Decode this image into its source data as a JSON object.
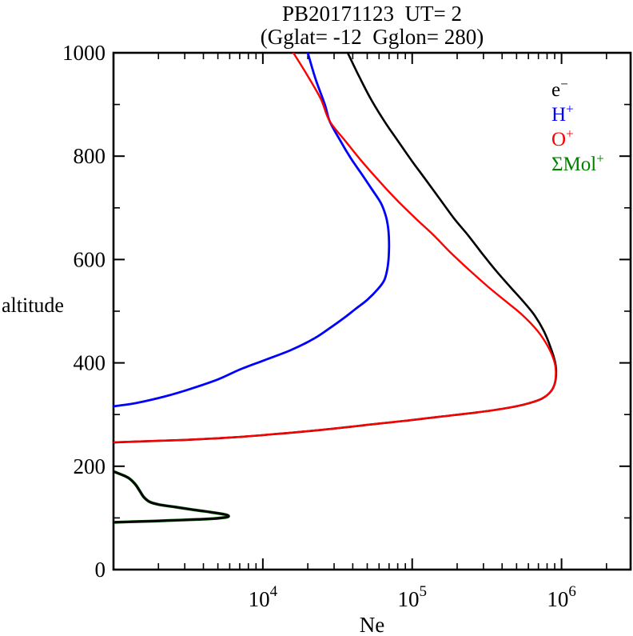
{
  "chart_data": {
    "type": "line",
    "title": "PB20171123  UT= 2",
    "subtitle": "(Gglat= -12  Gglon= 280)",
    "xlabel": "Ne",
    "ylabel": "altitude",
    "x_scale": "log",
    "xlim": [
      1000,
      2900000
    ],
    "ylim": [
      0,
      1000
    ],
    "x_major_tick_exponents": [
      4,
      5,
      6
    ],
    "x_tick_mantissa": "10",
    "y_major_ticks": [
      0,
      200,
      400,
      600,
      800,
      1000
    ],
    "y_minor_step": 100,
    "grid": "off",
    "legend_position": "upper-right-inside",
    "legend": [
      {
        "base": "e",
        "sup": "−",
        "color": "#000000"
      },
      {
        "base": "H",
        "sup": "+",
        "color": "#0000ff"
      },
      {
        "base": "O",
        "sup": "+",
        "color": "#ff0000"
      },
      {
        "base": "ΣMol",
        "sup": "+",
        "color": "#008000"
      }
    ],
    "series": [
      {
        "name": "sum-molecular-ions",
        "color": "#006400",
        "width": 3.6,
        "segments": [
          [
            [
              1000,
              190
            ],
            [
              1250,
              178
            ],
            [
              1400,
              165
            ],
            [
              1500,
              152
            ],
            [
              1600,
              140
            ],
            [
              1750,
              131
            ],
            [
              2000,
              126
            ],
            [
              2600,
              121
            ],
            [
              3400,
              116
            ],
            [
              4500,
              111
            ],
            [
              5500,
              107
            ],
            [
              5900,
              104
            ],
            [
              5600,
              101
            ],
            [
              4300,
              98
            ],
            [
              2900,
              96
            ],
            [
              1900,
              94
            ],
            [
              1300,
              92.5
            ],
            [
              1000,
              91.5
            ]
          ]
        ]
      },
      {
        "name": "hydrogen-ions",
        "color": "#0000ff",
        "width": 2.8,
        "segments": [
          [
            [
              20000,
              1000
            ],
            [
              22500,
              950
            ],
            [
              26000,
              900
            ],
            [
              28000,
              868
            ],
            [
              33000,
              830
            ],
            [
              39000,
              795
            ],
            [
              46000,
              765
            ],
            [
              54000,
              735
            ],
            [
              61500,
              710
            ],
            [
              66000,
              688
            ],
            [
              68500,
              668
            ],
            [
              69700,
              648
            ],
            [
              70000,
              625
            ],
            [
              69500,
              602
            ],
            [
              68000,
              580
            ],
            [
              65000,
              560
            ],
            [
              59000,
              543
            ],
            [
              50000,
              522
            ],
            [
              42000,
              505
            ],
            [
              35000,
              487
            ],
            [
              28000,
              467
            ],
            [
              22000,
              447
            ],
            [
              15500,
              425
            ],
            [
              10200,
              405
            ],
            [
              7000,
              387
            ],
            [
              5000,
              368
            ],
            [
              3300,
              350
            ],
            [
              2200,
              335
            ],
            [
              1400,
              322
            ],
            [
              1000,
              316
            ]
          ]
        ]
      },
      {
        "name": "electrons",
        "color": "#000000",
        "width": 2.6,
        "segments": [
          [
            [
              37000,
              1000
            ],
            [
              44000,
              955
            ],
            [
              53000,
              910
            ],
            [
              65000,
              868
            ],
            [
              80000,
              830
            ],
            [
              100000,
              790
            ],
            [
              125000,
              752
            ],
            [
              155000,
              715
            ],
            [
              190000,
              680
            ],
            [
              235000,
              648
            ],
            [
              290000,
              614
            ],
            [
              360000,
              580
            ],
            [
              450000,
              548
            ],
            [
              550000,
              520
            ],
            [
              660000,
              492
            ],
            [
              760000,
              462
            ],
            [
              840000,
              432
            ],
            [
              900000,
              405
            ],
            [
              920000,
              385
            ],
            [
              905000,
              362
            ],
            [
              850000,
              345
            ],
            [
              740000,
              331
            ],
            [
              590000,
              321
            ],
            [
              420000,
              312
            ],
            [
              270000,
              304
            ],
            [
              155000,
              296
            ],
            [
              90000,
              288
            ],
            [
              50000,
              280
            ],
            [
              26000,
              271
            ],
            [
              13000,
              263
            ],
            [
              6500,
              256
            ],
            [
              3000,
              251
            ],
            [
              1500,
              248
            ],
            [
              1000,
              246
            ]
          ],
          [
            [
              1000,
              190
            ],
            [
              1250,
              178
            ],
            [
              1400,
              165
            ],
            [
              1500,
              152
            ],
            [
              1600,
              140
            ],
            [
              1750,
              131
            ],
            [
              2000,
              126
            ],
            [
              2600,
              121
            ],
            [
              3400,
              116
            ],
            [
              4500,
              111
            ],
            [
              5500,
              107
            ],
            [
              5900,
              104
            ],
            [
              5600,
              101
            ],
            [
              4300,
              98
            ],
            [
              2900,
              96
            ],
            [
              1900,
              94
            ],
            [
              1300,
              92.5
            ],
            [
              1000,
              91.5
            ]
          ]
        ]
      },
      {
        "name": "oxygen-ions",
        "color": "#ff0000",
        "width": 2.4,
        "segments": [
          [
            [
              16000,
              1000
            ],
            [
              20000,
              955
            ],
            [
              24500,
              910
            ],
            [
              28000,
              868
            ],
            [
              36000,
              828
            ],
            [
              46000,
              790
            ],
            [
              60000,
              752
            ],
            [
              79000,
              715
            ],
            [
              105000,
              680
            ],
            [
              138000,
              648
            ],
            [
              180000,
              614
            ],
            [
              240000,
              580
            ],
            [
              320000,
              548
            ],
            [
              420000,
              520
            ],
            [
              550000,
              492
            ],
            [
              690000,
              462
            ],
            [
              810000,
              432
            ],
            [
              890000,
              405
            ],
            [
              915000,
              385
            ],
            [
              903000,
              362
            ],
            [
              848000,
              345
            ],
            [
              738000,
              331
            ],
            [
              588000,
              321
            ],
            [
              418000,
              312
            ],
            [
              268000,
              304
            ],
            [
              153000,
              296
            ],
            [
              89000,
              288
            ],
            [
              49500,
              280
            ],
            [
              25700,
              271
            ],
            [
              12800,
              263
            ],
            [
              6400,
              256
            ],
            [
              2950,
              251
            ],
            [
              1450,
              248
            ],
            [
              1000,
              246.5
            ]
          ]
        ]
      }
    ]
  }
}
